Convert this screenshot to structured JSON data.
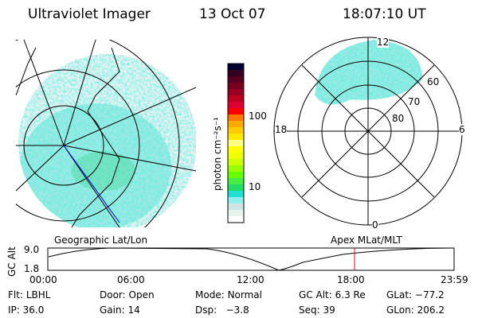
{
  "header": {
    "instrument": "Ultraviolet Imager",
    "date": "13 Oct 07",
    "time": "18:07:10 UT"
  },
  "colorbar": {
    "label": "photon cm⁻²s⁻¹",
    "ticks": [
      "100",
      "10"
    ],
    "colors": [
      "#000033",
      "#330022",
      "#550022",
      "#770022",
      "#990022",
      "#bb0022",
      "#dd0033",
      "#ff0000",
      "#ff7700",
      "#ffaa00",
      "#ffcc00",
      "#ffe800",
      "#ffff80",
      "#ffff00",
      "#eeff00",
      "#ccff00",
      "#99ff00",
      "#66ff00",
      "#44ee44",
      "#22dd66",
      "#22e0d0",
      "#90f0f0",
      "#d0e4e4",
      "#e8f4ee",
      "#ffffff"
    ]
  },
  "polar": {
    "labels": {
      "top": "12",
      "left": "18",
      "right": "6",
      "bottom": "0"
    },
    "rings": [
      "60",
      "70",
      "80"
    ]
  },
  "timeline": {
    "left_label": "Geographic Lat/Lon",
    "right_label": "Apex MLat/MLT",
    "axis_label": "GC Alt",
    "y_ticks": [
      "9.0",
      "1.8"
    ],
    "x_ticks": [
      "00:00",
      "06:00",
      "12:00",
      "18:00",
      "23:59"
    ],
    "marker_hour": 18.12
  },
  "status": [
    [
      {
        "k": "Flt:",
        "v": "LBHL"
      },
      {
        "k": "Door:",
        "v": "Open"
      },
      {
        "k": "Mode:",
        "v": "Normal"
      },
      {
        "k": "GC Alt:",
        "v": "6.3 Re"
      },
      {
        "k": "GLat:",
        "v": "−77.2"
      }
    ],
    [
      {
        "k": "IP:",
        "v": "36.0"
      },
      {
        "k": "Gain:",
        "v": "14"
      },
      {
        "k": "Dsp:",
        "v": "  −3.8"
      },
      {
        "k": "Seq:",
        "v": "39"
      },
      {
        "k": "GLon:",
        "v": "206.2"
      }
    ]
  ]
}
